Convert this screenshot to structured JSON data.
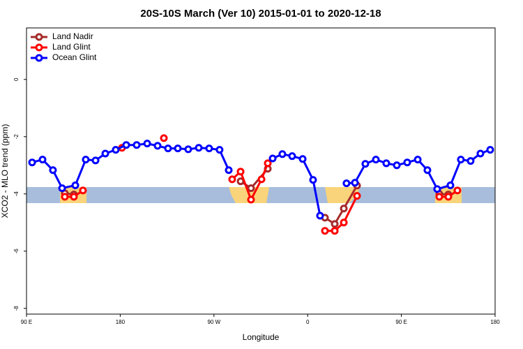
{
  "chart_data": {
    "type": "line",
    "title": "20S-10S March (Ver 10)   2015-01-01 to 2020-12-18",
    "xlabel": "Longitude",
    "ylabel": "XCO2 - MLO trend (ppm)",
    "xlim": [
      90,
      540
    ],
    "ylim": [
      -8.2,
      1.8
    ],
    "xticks": [
      {
        "value": 90,
        "label": "90 E"
      },
      180,
      {
        "value": 270,
        "label": "90 W"
      },
      {
        "value": 360,
        "label": "0"
      },
      {
        "value": 450,
        "label": "90 E"
      },
      {
        "value": 540,
        "label": "180"
      }
    ],
    "yticks": [
      -8,
      -6,
      -4,
      -2,
      0
    ],
    "legend": "top-left",
    "series": [
      {
        "name": "Land Nadir",
        "color": "#a52a2a",
        "x": [
          126.8,
          135.5,
          null,
          295.6,
          305.6,
          321.7,
          null,
          376.6,
          386.0,
          394.7,
          407.4,
          null,
          486.4,
          495.1
        ],
        "values": [
          -3.98,
          -4.02,
          null,
          -3.56,
          -3.8,
          -3.12,
          null,
          -4.83,
          -5.05,
          -4.51,
          -3.71,
          null,
          -4.0,
          -4.02
        ]
      },
      {
        "name": "Land Glint",
        "color": "#ff0000",
        "x": [
          126.8,
          135.5,
          144.2,
          null,
          181.7,
          null,
          221.9,
          null,
          287.5,
          295.6,
          305.6,
          315.7,
          321.7,
          null,
          376.6,
          386.0,
          394.7,
          407.4,
          null,
          486.4,
          495.1,
          503.8
        ],
        "values": [
          -4.1,
          -4.1,
          -3.88,
          null,
          -2.39,
          null,
          -2.05,
          null,
          -3.49,
          -3.22,
          -4.2,
          -3.49,
          -2.93,
          null,
          -5.29,
          -5.29,
          -5.0,
          -4.07,
          null,
          -4.1,
          -4.1,
          -3.88
        ]
      },
      {
        "name": "Ocean Glint",
        "color": "#0000ff",
        "x": [
          95.4,
          105.4,
          115.4,
          124.2,
          136.9,
          146.9,
          156.3,
          165.7,
          175.7,
          185.8,
          195.8,
          205.9,
          215.9,
          225.9,
          235.3,
          245.3,
          255.4,
          265.4,
          275.4,
          284.2,
          null,
          326.4,
          335.7,
          345.1,
          355.2,
          365.2,
          371.9,
          null,
          397.3,
          405.4,
          415.4,
          425.5,
          435.5,
          445.6,
          455.6,
          465.7,
          475.0,
          484.4,
          497.1,
          507.1,
          516.5,
          525.9,
          535.3
        ],
        "values": [
          -2.9,
          -2.8,
          -3.17,
          -3.8,
          -3.7,
          -2.8,
          -2.83,
          -2.59,
          -2.46,
          -2.29,
          -2.29,
          -2.24,
          -2.32,
          -2.41,
          -2.41,
          -2.44,
          -2.39,
          -2.41,
          -2.46,
          -3.17,
          null,
          -2.76,
          -2.61,
          -2.68,
          -2.78,
          -3.51,
          -4.76,
          null,
          -3.63,
          -3.61,
          -2.95,
          -2.8,
          -2.93,
          -3.0,
          -2.9,
          -2.8,
          -3.17,
          -3.83,
          -3.7,
          -2.8,
          -2.85,
          -2.59,
          -2.46
        ]
      }
    ]
  }
}
